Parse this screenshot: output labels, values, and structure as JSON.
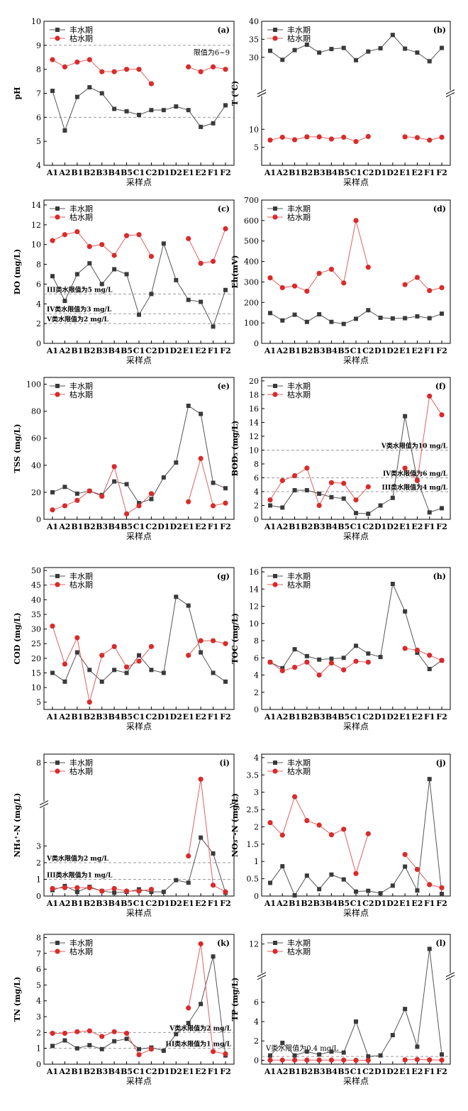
{
  "figure": {
    "x_categories": [
      "A1",
      "A2",
      "B1",
      "B2",
      "B3",
      "B4",
      "B5",
      "C1",
      "C2",
      "D1",
      "D2",
      "E1",
      "E2",
      "F1",
      "F2"
    ],
    "xlabel": "采样点",
    "series_names": [
      "丰水期",
      "枯水期"
    ],
    "colors": {
      "wet": "#3a3a3a",
      "dry": "#d92b2b",
      "ref": "#9a9a9a"
    }
  },
  "chart_data": [
    {
      "id": "a",
      "type": "line",
      "panel_label": "(a)",
      "ylabel": "pH",
      "ylim": [
        4,
        10
      ],
      "yticks": [
        4,
        5,
        6,
        7,
        8,
        9,
        10
      ],
      "series": [
        {
          "name": "丰水期",
          "values": [
            7.1,
            5.45,
            6.85,
            7.25,
            7.0,
            6.35,
            6.25,
            6.1,
            6.3,
            6.3,
            6.45,
            6.3,
            5.6,
            5.75,
            6.5
          ]
        },
        {
          "name": "枯水期",
          "values": [
            8.4,
            8.1,
            8.3,
            8.4,
            7.9,
            7.9,
            8.0,
            8.0,
            7.4,
            null,
            null,
            8.1,
            7.9,
            8.1,
            8.0
          ]
        }
      ],
      "refs": [
        {
          "value": 9,
          "label": ""
        },
        {
          "value": 6,
          "label": ""
        }
      ],
      "notes": [
        {
          "text": "限值为6~9",
          "x": 15,
          "y": 8.6,
          "anchor": "end"
        }
      ]
    },
    {
      "id": "b",
      "type": "line",
      "panel_label": "(b)",
      "ylabel": "T (℃)",
      "ylim": [
        0,
        40
      ],
      "yticks": [
        5,
        10,
        30,
        35,
        40
      ],
      "axis_break": [
        11,
        29
      ],
      "series": [
        {
          "name": "丰水期",
          "values": [
            31.8,
            29.3,
            32.0,
            33.5,
            31.3,
            32.3,
            32.6,
            29.2,
            31.6,
            32.5,
            36.2,
            32.4,
            31.3,
            28.9,
            32.6
          ]
        },
        {
          "name": "枯水期",
          "values": [
            7.0,
            7.8,
            7.1,
            7.9,
            7.9,
            7.3,
            7.8,
            6.6,
            8.0,
            null,
            null,
            7.9,
            7.7,
            7.0,
            7.8
          ]
        }
      ],
      "refs": [],
      "notes": []
    },
    {
      "id": "c",
      "type": "line",
      "panel_label": "(c)",
      "ylabel": "DO (mg/L)",
      "ylim": [
        0,
        14.5
      ],
      "yticks": [
        0,
        2,
        4,
        6,
        8,
        10,
        12,
        14
      ],
      "series": [
        {
          "name": "丰水期",
          "values": [
            6.8,
            4.3,
            7.0,
            8.1,
            6.0,
            7.5,
            7.0,
            2.9,
            5.0,
            10.1,
            6.4,
            4.4,
            4.2,
            1.7,
            5.4
          ]
        },
        {
          "name": "枯水期",
          "values": [
            10.4,
            11.0,
            11.3,
            9.8,
            10.0,
            8.9,
            10.9,
            11.0,
            8.8,
            null,
            null,
            10.6,
            8.1,
            8.3,
            11.6
          ]
        }
      ],
      "refs": [
        {
          "value": 5,
          "label": "III类水限值为5 mg/L"
        },
        {
          "value": 3,
          "label": "IV类水限值为3 mg/L"
        },
        {
          "value": 2,
          "label": "V类水限值为2 mg/L"
        }
      ],
      "notes": []
    },
    {
      "id": "d",
      "type": "line",
      "panel_label": "(d)",
      "ylabel": "Eh(mV)",
      "ylim": [
        0,
        700
      ],
      "yticks": [
        0,
        100,
        200,
        300,
        400,
        500,
        600,
        700
      ],
      "series": [
        {
          "name": "丰水期",
          "values": [
            148,
            112,
            140,
            105,
            142,
            105,
            95,
            120,
            162,
            125,
            122,
            123,
            132,
            123,
            145
          ]
        },
        {
          "name": "枯水期",
          "values": [
            320,
            272,
            280,
            255,
            342,
            362,
            295,
            600,
            372,
            null,
            null,
            287,
            322,
            258,
            272
          ]
        }
      ],
      "refs": [],
      "notes": []
    },
    {
      "id": "e",
      "type": "line",
      "panel_label": "(e)",
      "ylabel": "TSS (mg/L)",
      "ylim": [
        0,
        105
      ],
      "yticks": [
        0,
        20,
        40,
        60,
        80,
        100
      ],
      "series": [
        {
          "name": "丰水期",
          "values": [
            20,
            24,
            19,
            21,
            18,
            28,
            26,
            12,
            15,
            31,
            42,
            84,
            78,
            27,
            23
          ]
        },
        {
          "name": "枯水期",
          "values": [
            7,
            10,
            14,
            21,
            17,
            39,
            4,
            10,
            19,
            null,
            null,
            13,
            45,
            10,
            12
          ]
        }
      ],
      "refs": [],
      "notes": []
    },
    {
      "id": "f",
      "type": "line",
      "panel_label": "(f)",
      "ylabel": "BOD₅ (mg/L)",
      "ylim": [
        0,
        20.5
      ],
      "yticks": [
        0,
        2,
        4,
        6,
        8,
        10,
        12,
        14,
        16,
        18,
        20
      ],
      "series": [
        {
          "name": "丰水期",
          "values": [
            2.0,
            1.7,
            4.2,
            4.2,
            3.7,
            3.2,
            3.0,
            0.9,
            0.8,
            2.0,
            3.1,
            14.9,
            5.7,
            1.0,
            1.6
          ]
        },
        {
          "name": "枯水期",
          "values": [
            2.8,
            5.6,
            6.3,
            7.4,
            2.0,
            5.3,
            5.2,
            2.8,
            4.7,
            null,
            null,
            7.4,
            5.6,
            17.8,
            15.1
          ]
        }
      ],
      "refs": [
        {
          "value": 10,
          "label": "V类水限值为10 mg/L"
        },
        {
          "value": 6,
          "label": "IV类水限值为6 mg/L"
        },
        {
          "value": 4,
          "label": "III类水限值为4 mg/L"
        }
      ],
      "notes": []
    },
    {
      "id": "g",
      "type": "line",
      "panel_label": "(g)",
      "ylabel": "COD (mg/L)",
      "ylim": [
        2.5,
        51
      ],
      "yticks": [
        5,
        10,
        15,
        20,
        25,
        30,
        35,
        40,
        45,
        50
      ],
      "series": [
        {
          "name": "丰水期",
          "values": [
            15,
            12,
            22,
            16,
            12,
            16,
            15,
            21,
            16,
            15,
            41,
            38,
            22,
            15,
            12
          ]
        },
        {
          "name": "枯水期",
          "values": [
            31,
            18,
            27,
            5,
            21,
            24,
            17,
            19,
            24,
            null,
            null,
            21,
            26,
            26,
            25
          ]
        }
      ],
      "refs": [],
      "notes": []
    },
    {
      "id": "h",
      "type": "line",
      "panel_label": "(h)",
      "ylabel": "TOC (mg/L)",
      "ylim": [
        0,
        16.5
      ],
      "yticks": [
        0,
        2,
        4,
        6,
        8,
        10,
        12,
        14,
        16
      ],
      "series": [
        {
          "name": "丰水期",
          "values": [
            5.5,
            4.8,
            7.0,
            6.2,
            5.8,
            5.9,
            6.0,
            7.4,
            6.5,
            6.1,
            14.6,
            11.4,
            6.6,
            4.7,
            5.7
          ]
        },
        {
          "name": "枯水期",
          "values": [
            5.5,
            4.5,
            4.9,
            5.5,
            4.0,
            5.4,
            4.6,
            5.6,
            5.5,
            null,
            null,
            7.1,
            6.9,
            6.3,
            5.7
          ]
        }
      ],
      "refs": [],
      "notes": []
    },
    {
      "id": "i",
      "type": "line",
      "panel_label": "(i)",
      "ylabel": "NH₄⁺-N (mg/L)",
      "ylim": [
        0,
        8.5
      ],
      "yticks": [
        0,
        1,
        2,
        3,
        8
      ],
      "axis_break": [
        3.5,
        7.5
      ],
      "series": [
        {
          "name": "丰水期",
          "values": [
            0.35,
            0.6,
            0.25,
            0.55,
            0.3,
            0.2,
            0.25,
            0.4,
            0.25,
            0.25,
            0.95,
            0.8,
            3.5,
            2.55,
            0.2
          ]
        },
        {
          "name": "枯水期",
          "values": [
            0.45,
            0.5,
            0.5,
            0.5,
            0.3,
            0.45,
            0.3,
            0.3,
            0.4,
            null,
            null,
            2.4,
            7.0,
            0.65,
            0.25
          ]
        }
      ],
      "refs": [
        {
          "value": 2,
          "label": "V类水限值为2 mg/L"
        },
        {
          "value": 1,
          "label": "III类水限值为1 mg/L"
        }
      ],
      "notes": []
    },
    {
      "id": "j",
      "type": "line",
      "panel_label": "(j)",
      "ylabel": "NO₃⁻-N (mg/L)",
      "ylim": [
        0,
        4.1
      ],
      "yticks": [
        0,
        0.5,
        1.0,
        1.5,
        2.0,
        2.5,
        3.0,
        3.5,
        4.0
      ],
      "series": [
        {
          "name": "丰水期",
          "values": [
            0.38,
            0.86,
            0.02,
            0.59,
            0.2,
            0.62,
            0.48,
            0.13,
            0.15,
            0.08,
            0.3,
            0.85,
            0.16,
            3.38,
            0.06
          ]
        },
        {
          "name": "枯水期",
          "values": [
            2.12,
            1.76,
            2.87,
            2.18,
            2.05,
            1.77,
            1.93,
            0.65,
            1.8,
            null,
            null,
            1.2,
            0.77,
            0.33,
            0.24
          ]
        }
      ],
      "refs": [],
      "notes": []
    },
    {
      "id": "k",
      "type": "line",
      "panel_label": "(k)",
      "ylabel": "TN (mg/L)",
      "ylim": [
        0,
        8.2
      ],
      "yticks": [
        0,
        1,
        2,
        3,
        4,
        5,
        6,
        7,
        8
      ],
      "series": [
        {
          "name": "丰水期",
          "values": [
            1.15,
            1.5,
            1.0,
            1.2,
            0.95,
            1.45,
            1.6,
            0.95,
            1.05,
            0.85,
            1.9,
            2.6,
            3.8,
            6.8,
            0.55
          ]
        },
        {
          "name": "枯水期",
          "values": [
            1.95,
            1.95,
            2.05,
            2.1,
            1.75,
            2.05,
            1.95,
            0.6,
            0.95,
            null,
            null,
            3.55,
            7.6,
            0.8,
            0.65
          ]
        }
      ],
      "refs": [
        {
          "value": 2,
          "label": "V类水限值为2 mg/L"
        },
        {
          "value": 1,
          "label": "III类水限值为1 mg/L"
        }
      ],
      "notes": []
    },
    {
      "id": "l",
      "type": "line",
      "panel_label": "(l)",
      "ylabel": "TP (mg/L)",
      "ylim": [
        -0.4,
        13
      ],
      "yticks": [
        0,
        2,
        4,
        6,
        12
      ],
      "axis_break": [
        6.6,
        10.8
      ],
      "series": [
        {
          "name": "丰水期",
          "values": [
            0.5,
            1.8,
            0.5,
            0.9,
            0.6,
            0.9,
            0.8,
            4.0,
            0.4,
            0.5,
            2.6,
            5.3,
            1.4,
            11.5,
            0.6
          ]
        },
        {
          "name": "枯水期",
          "values": [
            0.02,
            0.02,
            0.02,
            0.02,
            0.02,
            0.02,
            0.02,
            0.0,
            0.0,
            null,
            null,
            0.05,
            0.08,
            0.05,
            0.02
          ]
        }
      ],
      "refs": [
        {
          "value": 0.4,
          "label": ""
        }
      ],
      "notes": [
        {
          "text": "V类水限值为0.4 mg/L",
          "x": 0,
          "y": 1.0,
          "anchor": "start"
        }
      ]
    }
  ]
}
